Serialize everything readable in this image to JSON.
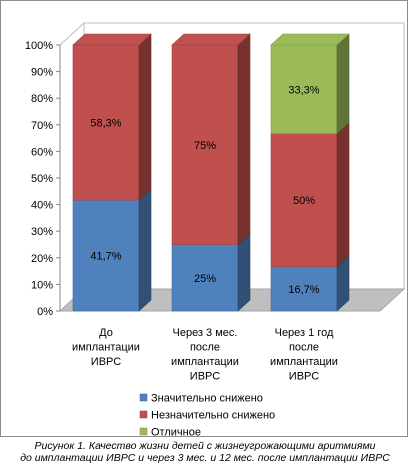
{
  "chart_data": {
    "type": "bar",
    "stacked": "percent",
    "three_d": true,
    "categories": [
      [
        "До",
        "имплантации",
        "ИВРС"
      ],
      [
        "Через 3 мес.",
        "после",
        "имплантации",
        "ИВРС"
      ],
      [
        "Через 1 год",
        "после",
        "имплантации",
        "ИВРС"
      ]
    ],
    "series": [
      {
        "name": "Значительно снижено",
        "values": [
          41.7,
          25,
          16.7
        ],
        "labels": [
          "41,7%",
          "25%",
          "16,7%"
        ],
        "color": "#4f81bd"
      },
      {
        "name": "Незначительно снижено",
        "values": [
          58.3,
          75,
          50
        ],
        "labels": [
          "58,3%",
          "75%",
          "50%"
        ],
        "color": "#c0504d"
      },
      {
        "name": "Отличное",
        "values": [
          0,
          0,
          33.3
        ],
        "labels": [
          "",
          "",
          "33,3%"
        ],
        "color": "#9bbb59"
      }
    ],
    "yticks": [
      "0%",
      "10%",
      "20%",
      "30%",
      "40%",
      "50%",
      "60%",
      "70%",
      "80%",
      "90%",
      "100%"
    ],
    "ylim": [
      0,
      100
    ],
    "legend_position": "bottom",
    "grid": false
  },
  "caption": {
    "line1": "Рисунок 1. Качество жизни детей с жизнеугрожающими аритмиями",
    "line2": "до имплантации ИВРС и через 3 мес. и 12 мес. после имплантации ИВРС"
  }
}
